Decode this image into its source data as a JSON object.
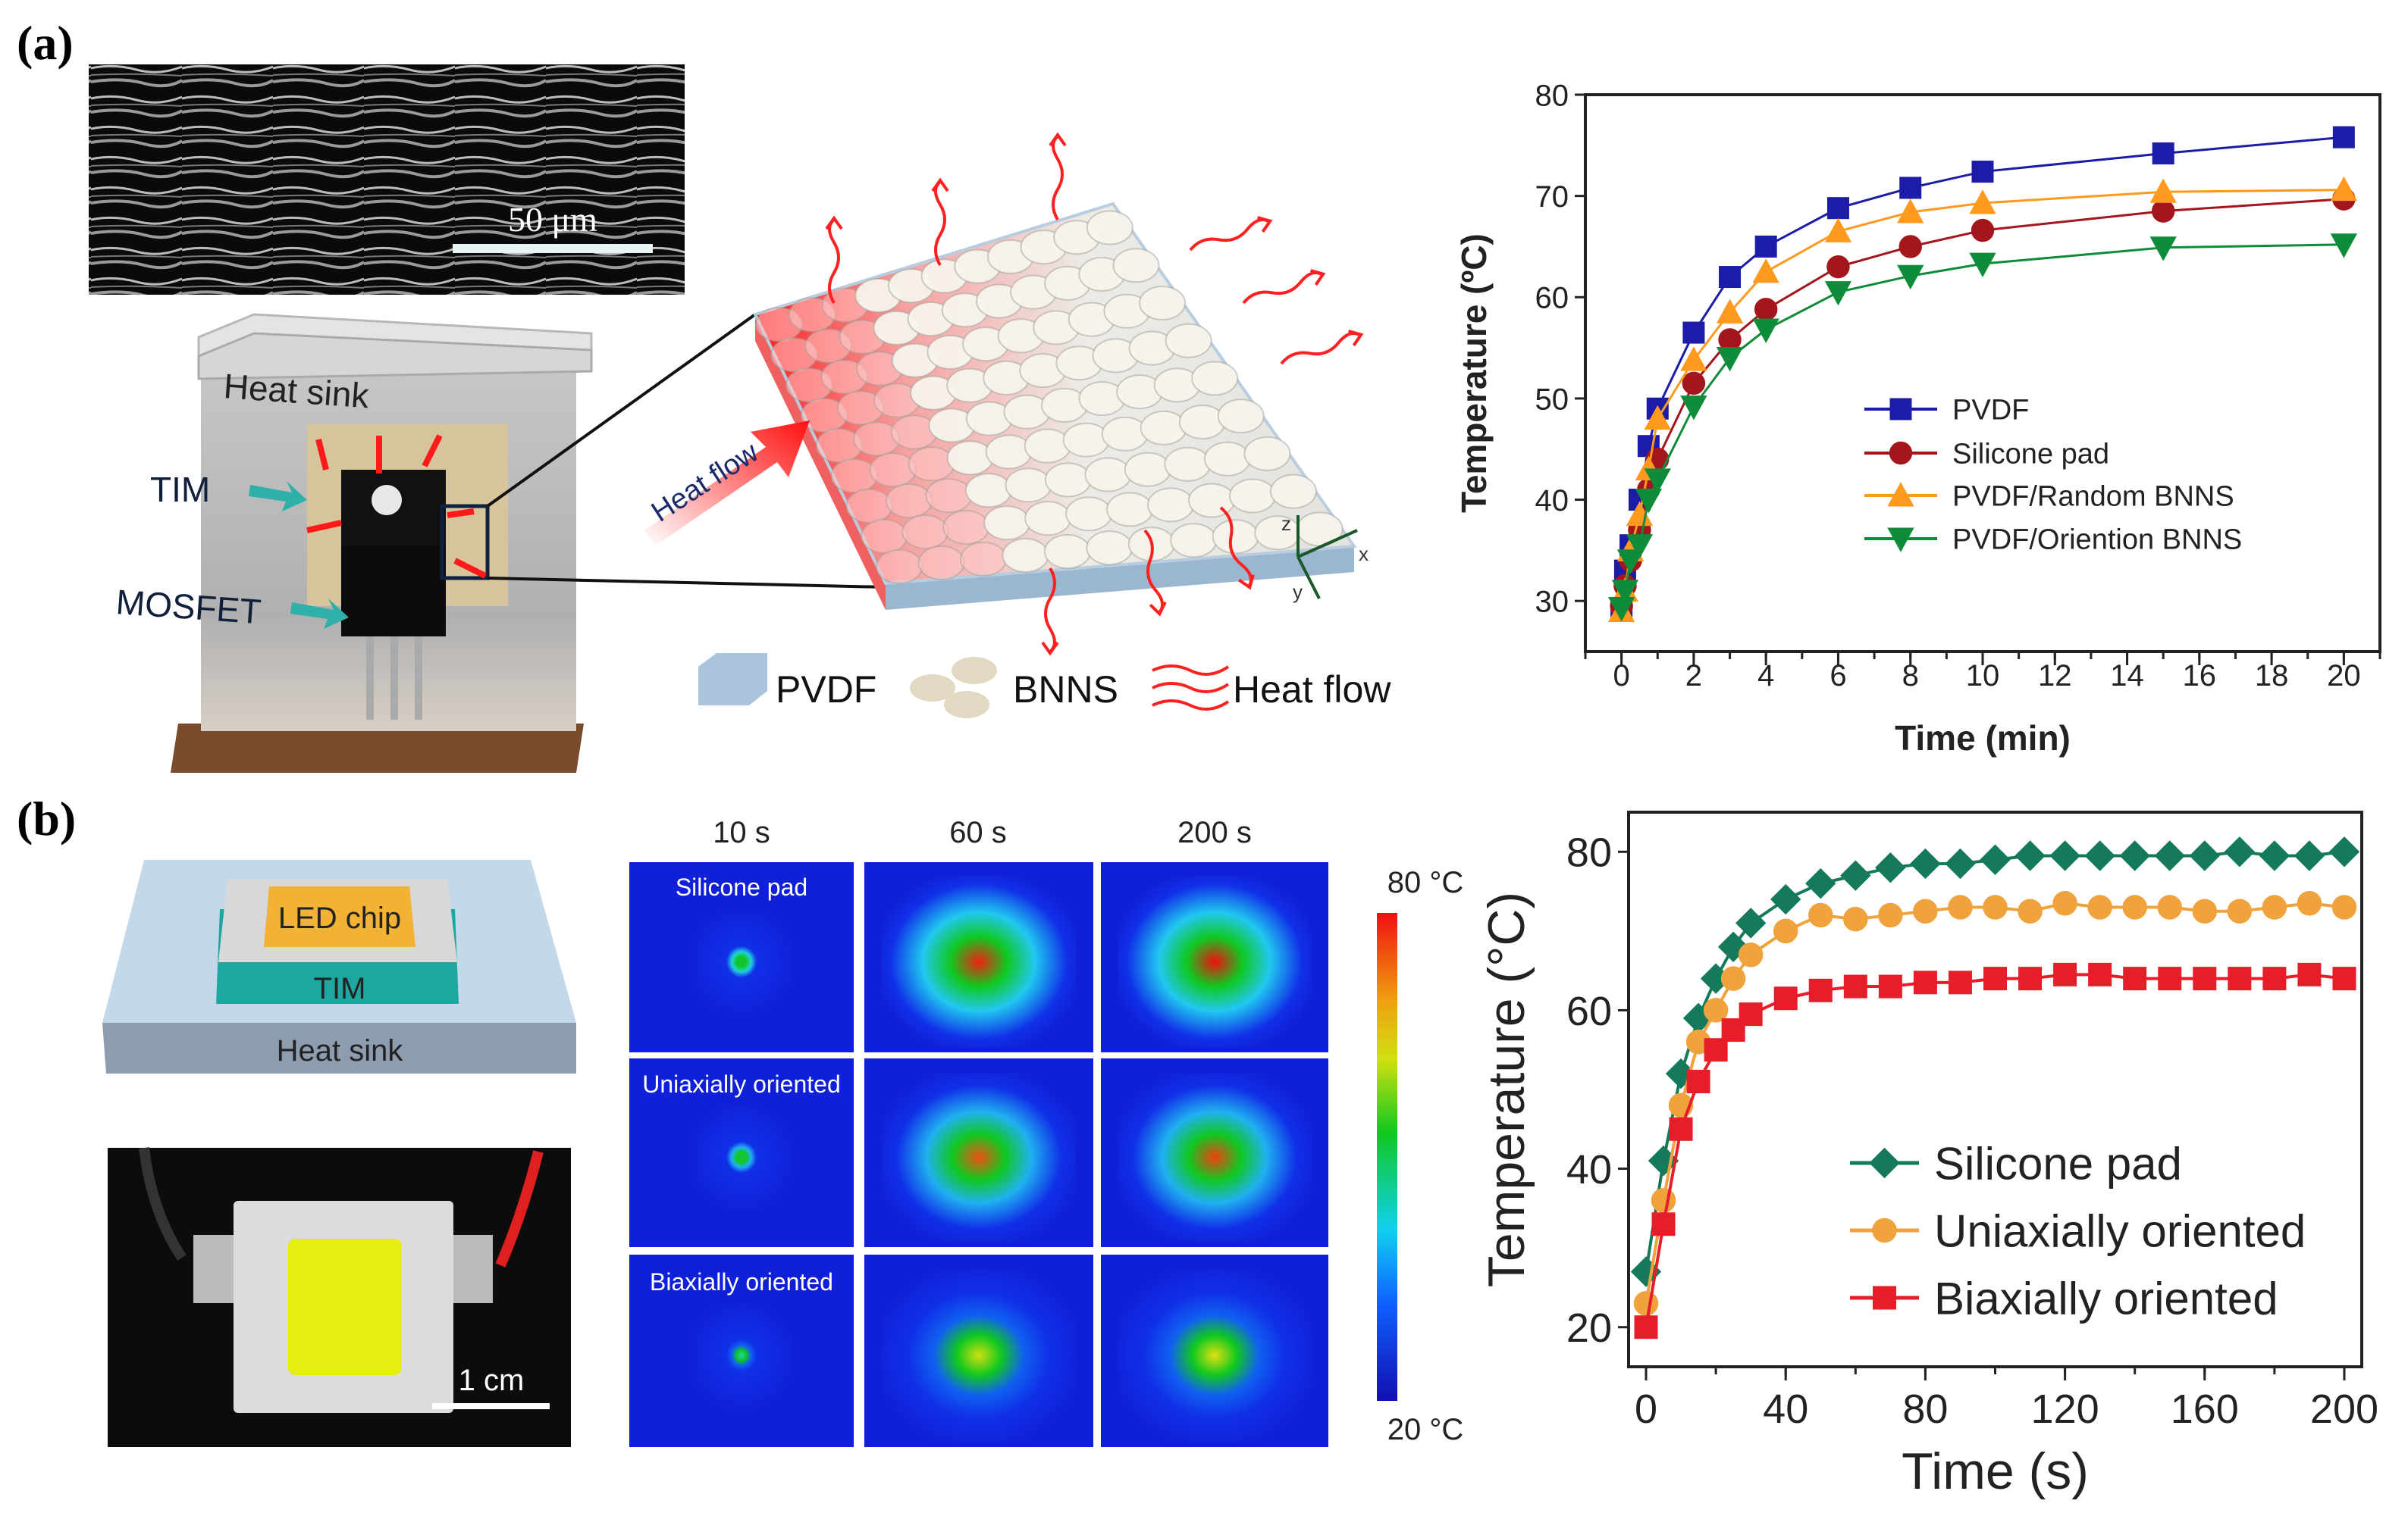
{
  "panel_labels": {
    "a": "(a)",
    "b": "(b)"
  },
  "panel_a": {
    "sem_scale_label": "50 μm",
    "device_labels": {
      "heat_sink": "Heat sink",
      "tim": "TIM",
      "mosfet": "MOSFET"
    },
    "heat_flow_arrow_label": "Heat flow",
    "axes_glyph": {
      "z": "z",
      "x": "x",
      "y": "y"
    },
    "legend": {
      "pvdf": "PVDF",
      "bnns": "BNNS",
      "heat_flow": "Heat flow"
    },
    "colors": {
      "heat": "#ff2020",
      "pvdf_block": "#a9c4dc",
      "bnns": "#e8e0cc",
      "mosfet": "#111111",
      "tim_pad": "#d8c49c",
      "base": "#7a4a2c"
    }
  },
  "panel_b": {
    "schematic_labels": {
      "led_chip": "LED chip",
      "tim": "TIM",
      "heat_sink": "Heat sink"
    },
    "photo_scale_label": "1 cm",
    "thermal_columns": [
      "10 s",
      "60 s",
      "200 s"
    ],
    "thermal_rows": [
      "Silicone pad",
      "Uniaxially oriented",
      "Biaxially oriented"
    ],
    "colorbar": {
      "max_label": "80 °C",
      "min_label": "20 °C",
      "min": 20,
      "max": 80
    },
    "colors": {
      "chip": "#f2b234",
      "tim": "#1ea7a0",
      "sink": "#b9d3e6",
      "led_yellow": "#e6ee10"
    }
  },
  "chart_data": [
    {
      "type": "line",
      "title": "",
      "xlabel": "Time (min)",
      "ylabel": "Temperature (ºC)",
      "xlim": [
        -1,
        21
      ],
      "ylim": [
        25,
        80
      ],
      "xticks": [
        0,
        2,
        4,
        6,
        8,
        10,
        12,
        14,
        16,
        18,
        20
      ],
      "yticks": [
        30,
        40,
        50,
        60,
        70,
        80
      ],
      "grid": false,
      "legend_placement": "center-right",
      "x": [
        0,
        0.1,
        0.25,
        0.5,
        0.75,
        1,
        2,
        3,
        4,
        6,
        8,
        10,
        15,
        20
      ],
      "series": [
        {
          "name": "PVDF",
          "marker": "square",
          "color": "#1c1ca8",
          "values": [
            29,
            33,
            35.5,
            40,
            45.3,
            49,
            56.5,
            62,
            65,
            68.8,
            70.8,
            72.4,
            74.2,
            75.8
          ]
        },
        {
          "name": "Silicone pad",
          "marker": "circle",
          "color": "#a3161c",
          "values": [
            29.5,
            31.5,
            34,
            37,
            41,
            44,
            51.5,
            55.8,
            58.8,
            63,
            65,
            66.6,
            68.5,
            69.7
          ]
        },
        {
          "name": "PVDF/Random BNNS",
          "marker": "triangle-up",
          "color": "#ff9a1e",
          "values": [
            29,
            31,
            35,
            38.5,
            43,
            48,
            53.8,
            58.5,
            62.5,
            66.5,
            68.4,
            69.3,
            70.4,
            70.6
          ]
        },
        {
          "name": "PVDF/Oriention BNNS",
          "marker": "triangle-down",
          "color": "#0e8c3a",
          "values": [
            29.3,
            31,
            34,
            35.5,
            40,
            42,
            49.2,
            54,
            56.8,
            60.5,
            62.1,
            63.3,
            64.9,
            65.2
          ]
        }
      ]
    },
    {
      "type": "line",
      "title": "",
      "xlabel": "Time (s)",
      "ylabel": "Temperature (°C)",
      "xlim": [
        -5,
        205
      ],
      "ylim": [
        15,
        85
      ],
      "xticks": [
        0,
        40,
        80,
        120,
        160,
        200
      ],
      "yticks": [
        20,
        40,
        60,
        80
      ],
      "grid": false,
      "legend_placement": "bottom-right",
      "x": [
        0,
        5,
        10,
        15,
        20,
        25,
        30,
        40,
        50,
        60,
        70,
        80,
        90,
        100,
        110,
        120,
        130,
        140,
        150,
        160,
        170,
        180,
        190,
        200
      ],
      "series": [
        {
          "name": "Silicone pad",
          "marker": "diamond",
          "color": "#157a5c",
          "values": [
            27,
            41,
            52,
            59,
            64,
            68,
            71,
            74,
            76,
            77,
            78,
            78.5,
            78.5,
            79,
            79.5,
            79.5,
            79.5,
            79.5,
            79.5,
            79.5,
            80,
            79.5,
            79.5,
            80
          ]
        },
        {
          "name": "Uniaxially oriented",
          "marker": "circle",
          "color": "#f0a33c",
          "values": [
            23,
            36,
            48,
            56,
            60,
            64,
            67,
            70,
            72,
            71.5,
            72,
            72.5,
            73,
            73,
            72.5,
            73.5,
            73,
            73,
            73,
            72.5,
            72.5,
            73,
            73.5,
            73
          ]
        },
        {
          "name": "Biaxially oriented",
          "marker": "square",
          "color": "#e61e2a",
          "values": [
            20,
            33,
            45,
            51,
            55,
            57.5,
            59.5,
            61.5,
            62.5,
            63,
            63,
            63.5,
            63.5,
            64,
            64,
            64.5,
            64.5,
            64,
            64,
            64,
            64,
            64,
            64.5,
            64
          ]
        }
      ]
    }
  ]
}
